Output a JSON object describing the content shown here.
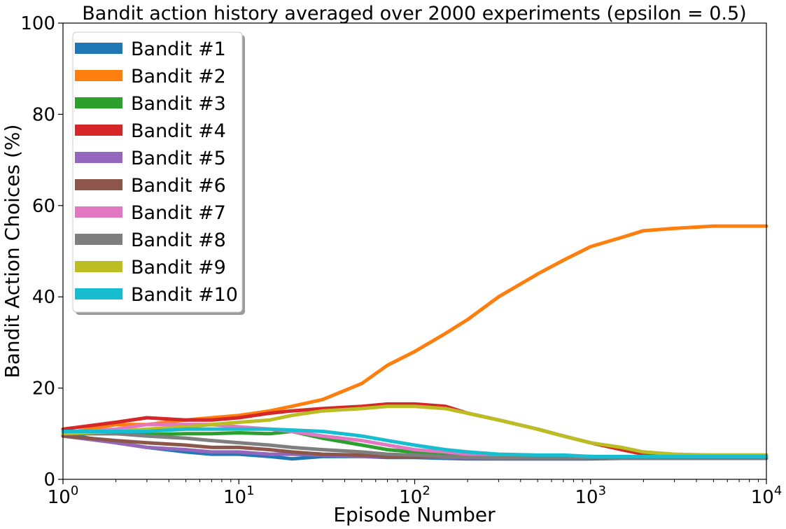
{
  "chart_data": {
    "type": "line",
    "title": "Bandit action history averaged over 2000 experiments (epsilon = 0.5)",
    "xlabel": "Episode Number",
    "ylabel": "Bandit Action Choices (%)",
    "xscale": "log",
    "xlim": [
      1,
      10000
    ],
    "ylim": [
      0,
      100
    ],
    "grid": false,
    "legend_placement": "upper-left",
    "x_ticks": [
      {
        "value": 1,
        "base": "10",
        "exp": "0"
      },
      {
        "value": 10,
        "base": "10",
        "exp": "1"
      },
      {
        "value": 100,
        "base": "10",
        "exp": "2"
      },
      {
        "value": 1000,
        "base": "10",
        "exp": "3"
      },
      {
        "value": 10000,
        "base": "10",
        "exp": "4"
      }
    ],
    "y_ticks": [
      0,
      20,
      40,
      60,
      80,
      100
    ],
    "x": [
      1,
      2,
      3,
      5,
      7,
      10,
      15,
      20,
      30,
      50,
      70,
      100,
      150,
      200,
      300,
      500,
      700,
      1000,
      1500,
      2000,
      3000,
      5000,
      7000,
      10000
    ],
    "series": [
      {
        "name": "Bandit #1",
        "color": "#1f77b4",
        "values": [
          10,
          8,
          7,
          6,
          5.5,
          5.5,
          5,
          4.5,
          5,
          5,
          4.8,
          4.8,
          4.6,
          4.5,
          4.5,
          4.5,
          4.5,
          4.5,
          4.6,
          4.6,
          4.6,
          4.6,
          4.6,
          4.6
        ]
      },
      {
        "name": "Bandit #2",
        "color": "#ff7f0e",
        "values": [
          10,
          12,
          12,
          13,
          13.5,
          14,
          15,
          16,
          17.5,
          21,
          25,
          28,
          32,
          35,
          40,
          45,
          48,
          51,
          53,
          54.5,
          55,
          55.5,
          55.5,
          55.5
        ]
      },
      {
        "name": "Bandit #3",
        "color": "#2ca02c",
        "values": [
          10,
          10,
          9.8,
          10,
          10,
          10.2,
          10,
          10.5,
          9,
          7.5,
          6.5,
          6,
          5.5,
          5.3,
          5.2,
          5,
          5,
          5,
          4.8,
          4.8,
          4.8,
          4.8,
          4.8,
          4.8
        ]
      },
      {
        "name": "Bandit #4",
        "color": "#d62728",
        "values": [
          11,
          12.5,
          13.5,
          13,
          13,
          13.5,
          14.5,
          15,
          15.5,
          16,
          16.5,
          16.5,
          16,
          14.5,
          13,
          11,
          9.5,
          8,
          6.5,
          5.5,
          5.3,
          5.3,
          5.3,
          5.3
        ]
      },
      {
        "name": "Bandit #5",
        "color": "#9467bd",
        "values": [
          9.5,
          8,
          7,
          6.5,
          6,
          6,
          5.5,
          5.5,
          5.3,
          5,
          5,
          5,
          4.8,
          4.7,
          4.7,
          4.7,
          4.7,
          4.7,
          4.7,
          4.7,
          4.7,
          4.7,
          4.7,
          4.7
        ]
      },
      {
        "name": "Bandit #6",
        "color": "#8c564b",
        "values": [
          9.5,
          8.5,
          8,
          7.5,
          7,
          7,
          6.5,
          6,
          5.5,
          5.3,
          5,
          5,
          5,
          4.8,
          4.8,
          4.8,
          4.8,
          4.8,
          4.8,
          4.8,
          4.8,
          4.8,
          4.8,
          4.8
        ]
      },
      {
        "name": "Bandit #7",
        "color": "#e377c2",
        "values": [
          10,
          11,
          12,
          12,
          12,
          11.5,
          11,
          10.5,
          9.5,
          8.5,
          7.5,
          6.5,
          6,
          5.5,
          5.3,
          5,
          5,
          5,
          4.8,
          4.8,
          4.8,
          4.8,
          4.8,
          4.8
        ]
      },
      {
        "name": "Bandit #8",
        "color": "#7f7f7f",
        "values": [
          10,
          10,
          9.5,
          9,
          8.5,
          8,
          7.5,
          7,
          6.5,
          6,
          5.5,
          5.3,
          5,
          4.8,
          4.7,
          4.7,
          4.7,
          4.7,
          4.7,
          4.7,
          4.7,
          4.7,
          4.7,
          4.7
        ]
      },
      {
        "name": "Bandit #9",
        "color": "#bcbd22",
        "values": [
          10,
          10.5,
          11,
          11.5,
          12,
          12.5,
          13,
          14,
          15,
          15.5,
          16,
          16,
          15.5,
          14.5,
          13,
          11,
          9.5,
          8,
          7,
          6,
          5.5,
          5.3,
          5.3,
          5.3
        ]
      },
      {
        "name": "Bandit #10",
        "color": "#17becf",
        "values": [
          10.5,
          10.5,
          10.5,
          11,
          11,
          11,
          11,
          10.8,
          10.5,
          9.5,
          8.5,
          7.5,
          6.5,
          6,
          5.5,
          5.3,
          5.3,
          5,
          5,
          5,
          5,
          5,
          5,
          5
        ]
      }
    ]
  }
}
